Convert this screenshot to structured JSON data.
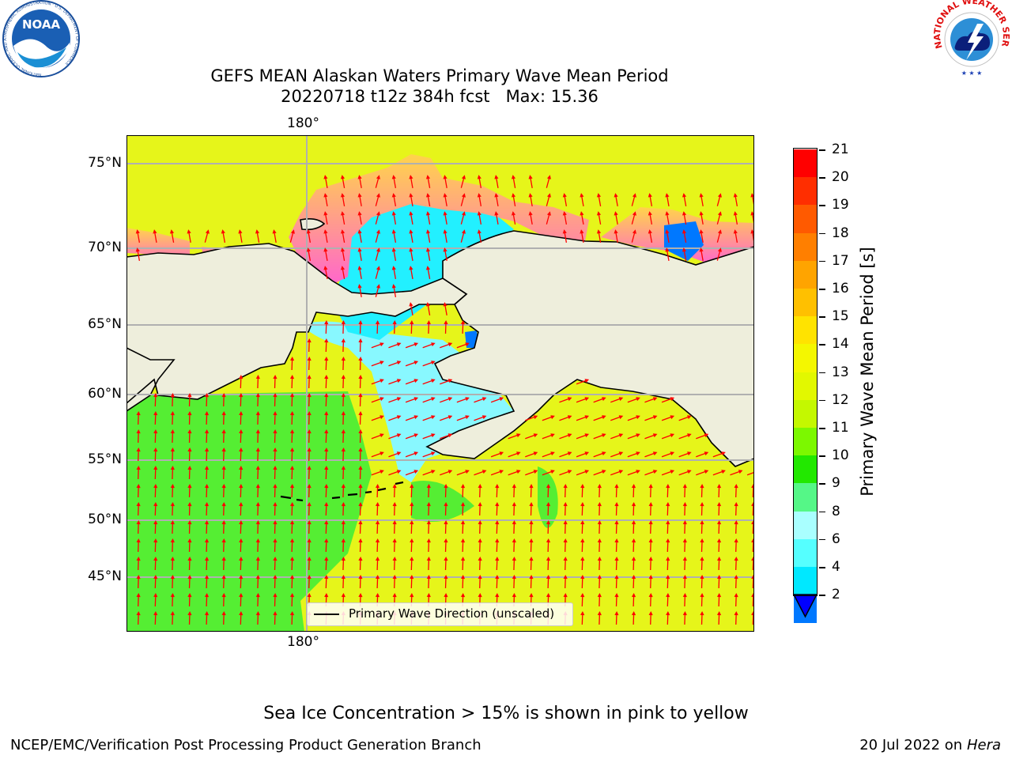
{
  "title": {
    "line1": "GEFS MEAN Alaskan Waters Primary Wave Mean Period",
    "line2": "20220718 t12z 384h fcst   Max: 15.36"
  },
  "map": {
    "lon_labels": {
      "top": "180°",
      "bottom": "180°"
    },
    "lat_labels": [
      "75°N",
      "70°N",
      "65°N",
      "60°N",
      "55°N",
      "50°N",
      "45°N"
    ],
    "legend_label": "Primary Wave Direction (unscaled)"
  },
  "colorbar": {
    "title": "Primary Wave Mean Period [s]",
    "ticks": [
      "21",
      "20",
      "19",
      "18",
      "17",
      "16",
      "15",
      "14",
      "13",
      "12",
      "11",
      "10",
      "9",
      "8",
      "6",
      "4",
      "2"
    ],
    "colors": [
      "#ff0000",
      "#ff2e00",
      "#ff5a00",
      "#ff7f00",
      "#ffa400",
      "#ffc000",
      "#ffe300",
      "#f4f700",
      "#e2f800",
      "#c4f800",
      "#7cf800",
      "#22e800",
      "#55f787",
      "#a9ffff",
      "#55ffff",
      "#00e8ff",
      "#0078ff"
    ],
    "extend_color": "#0000ff"
  },
  "colors": {
    "land": "#eeeedc",
    "ocean_pacific": "#e6f51a",
    "ocean_west": "#55ee33",
    "bering": "#88f8ff",
    "arctic": "#22f0ff",
    "ice_pink": "#ff66cc",
    "ice_yellow": "#ffd44a",
    "arrow": "#ff0000"
  },
  "footer": {
    "ice_note": "Sea Ice Concentration > 15% is shown in pink to yellow",
    "left": "NCEP/EMC/Verification Post Processing Product Generation Branch",
    "right_prefix": "20 Jul 2022 on ",
    "right_host": "Hera"
  },
  "logos": {
    "noaa": "NOAA",
    "noaa_ring": "NATIONAL OCEANIC AND ATMOSPHERIC ADMINISTRATION · U.S. DEPARTMENT OF COMMERCE",
    "nws_ring": "NATIONAL WEATHER SERVICE"
  }
}
